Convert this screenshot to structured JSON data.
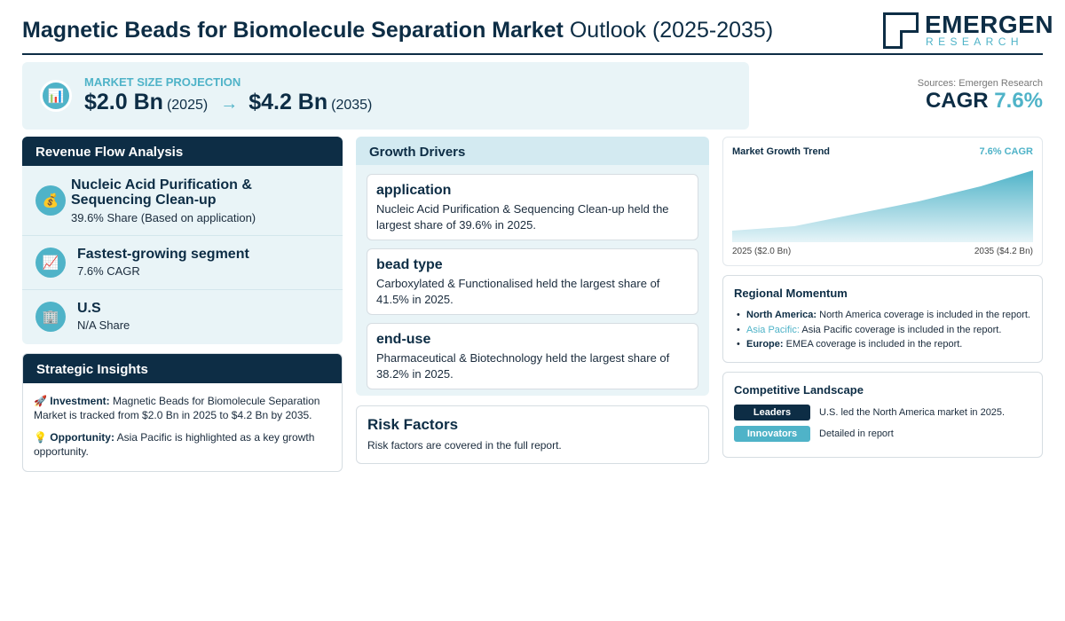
{
  "header": {
    "title_bold": "Magnetic Beads for Biomolecule Separation Market",
    "title_rest": "Outlook (2025-2035)",
    "logo_name": "EMERGEN",
    "logo_sub": "RESEARCH"
  },
  "projection": {
    "label": "MARKET SIZE PROJECTION",
    "start_value": "$2.0 Bn",
    "start_year": "(2025)",
    "arrow": "→",
    "end_value": "$4.2 Bn",
    "end_year": "(2035)",
    "icon": "bar-chart-icon"
  },
  "sources": "Sources: Emergen Research",
  "cagr": {
    "label": "CAGR",
    "value": "7.6%"
  },
  "revenue": {
    "title": "Revenue Flow Analysis",
    "items": [
      {
        "icon": "money-bag-icon",
        "title": "Nucleic Acid Purification & Sequencing Clean-up",
        "sub": "39.6% Share (Based on application)"
      },
      {
        "icon": "trending-up-icon",
        "title": "Fastest-growing segment",
        "sub": "7.6% CAGR"
      },
      {
        "icon": "building-icon",
        "title": "U.S",
        "sub": "N/A Share"
      }
    ]
  },
  "insights": {
    "title": "Strategic Insights",
    "investment_label": "Investment:",
    "investment_text": "Magnetic Beads for Biomolecule Separation Market is tracked from $2.0 Bn in 2025 to $4.2 Bn by 2035.",
    "opportunity_label": "Opportunity:",
    "opportunity_text": "Asia Pacific is highlighted as a key growth opportunity."
  },
  "drivers": {
    "title": "Growth Drivers",
    "cards": [
      {
        "heading": "application",
        "text": "Nucleic Acid Purification & Sequencing Clean-up held the largest share of 39.6% in 2025."
      },
      {
        "heading": "bead type",
        "text": "Carboxylated & Functionalised held the largest share of 41.5% in 2025."
      },
      {
        "heading": "end-use",
        "text": "Pharmaceutical & Biotechnology held the largest share of 38.2% in 2025."
      }
    ]
  },
  "risk": {
    "title": "Risk Factors",
    "text": "Risk factors are covered in the full report."
  },
  "trend": {
    "title": "Market Growth Trend",
    "cagr_label": "7.6% CAGR",
    "left_label": "2025 ($2.0 Bn)",
    "right_label": "2035 ($4.2 Bn)",
    "colors": {
      "fill_top": "#4fb3c8",
      "fill_bottom": "#e6f4f8"
    }
  },
  "regional": {
    "title": "Regional Momentum",
    "items": [
      {
        "region": "North America:",
        "text": "North America coverage is included in the report.",
        "accent": false
      },
      {
        "region": "Asia Pacific:",
        "text": "Asia Pacific coverage is included in the report.",
        "accent": true
      },
      {
        "region": "Europe:",
        "text": "EMEA coverage is included in the report.",
        "accent": false
      }
    ]
  },
  "competitive": {
    "title": "Competitive Landscape",
    "rows": [
      {
        "pill": "Leaders",
        "text": "U.S. led the North America market in 2025."
      },
      {
        "pill": "Innovators",
        "text": "Detailed in report"
      }
    ]
  }
}
